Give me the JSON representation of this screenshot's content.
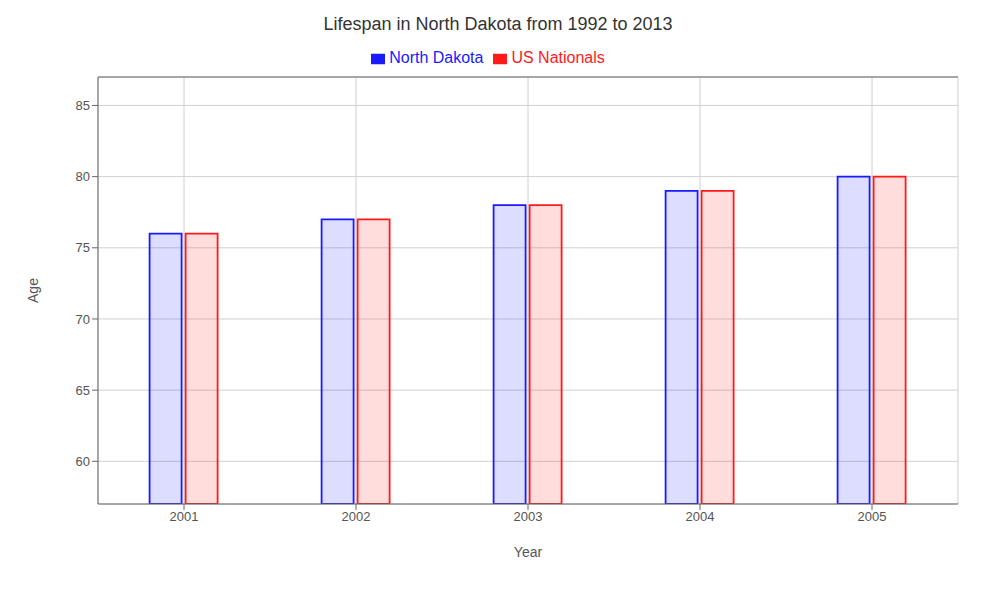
{
  "chart_data": {
    "type": "bar",
    "title": "Lifespan in North Dakota from 1992 to 2013",
    "xlabel": "Year",
    "ylabel": "Age",
    "categories": [
      "2001",
      "2002",
      "2003",
      "2004",
      "2005"
    ],
    "series": [
      {
        "name": "North Dakota",
        "color": "#1a1aff",
        "values": [
          76,
          77,
          78,
          79,
          80
        ]
      },
      {
        "name": "US Nationals",
        "color": "#ff1a1a",
        "values": [
          76,
          77,
          78,
          79,
          80
        ]
      }
    ],
    "ylim": [
      57,
      87
    ],
    "yticks": [
      60,
      65,
      70,
      75,
      80,
      85
    ],
    "grid": true,
    "legend": "top"
  }
}
